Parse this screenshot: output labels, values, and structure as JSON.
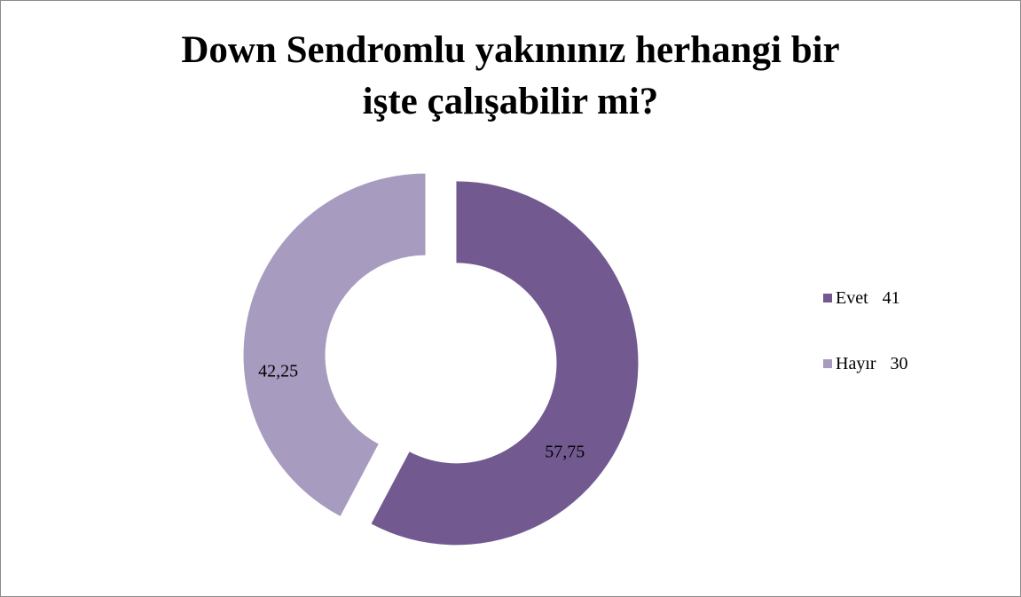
{
  "chart_data": {
    "type": "pie",
    "variant": "donut",
    "title_lines": [
      "Down Sendromlu yakınınız herhangi bir",
      "işte çalışabilir mi?"
    ],
    "slices": [
      {
        "name": "Evet",
        "count": 41,
        "label": "57,75",
        "value": 57.75,
        "color": "#725a91"
      },
      {
        "name": "Hayır",
        "count": 30,
        "label": "42,25",
        "value": 42.25,
        "color": "#a89bc0"
      }
    ],
    "legend_position": "right"
  }
}
